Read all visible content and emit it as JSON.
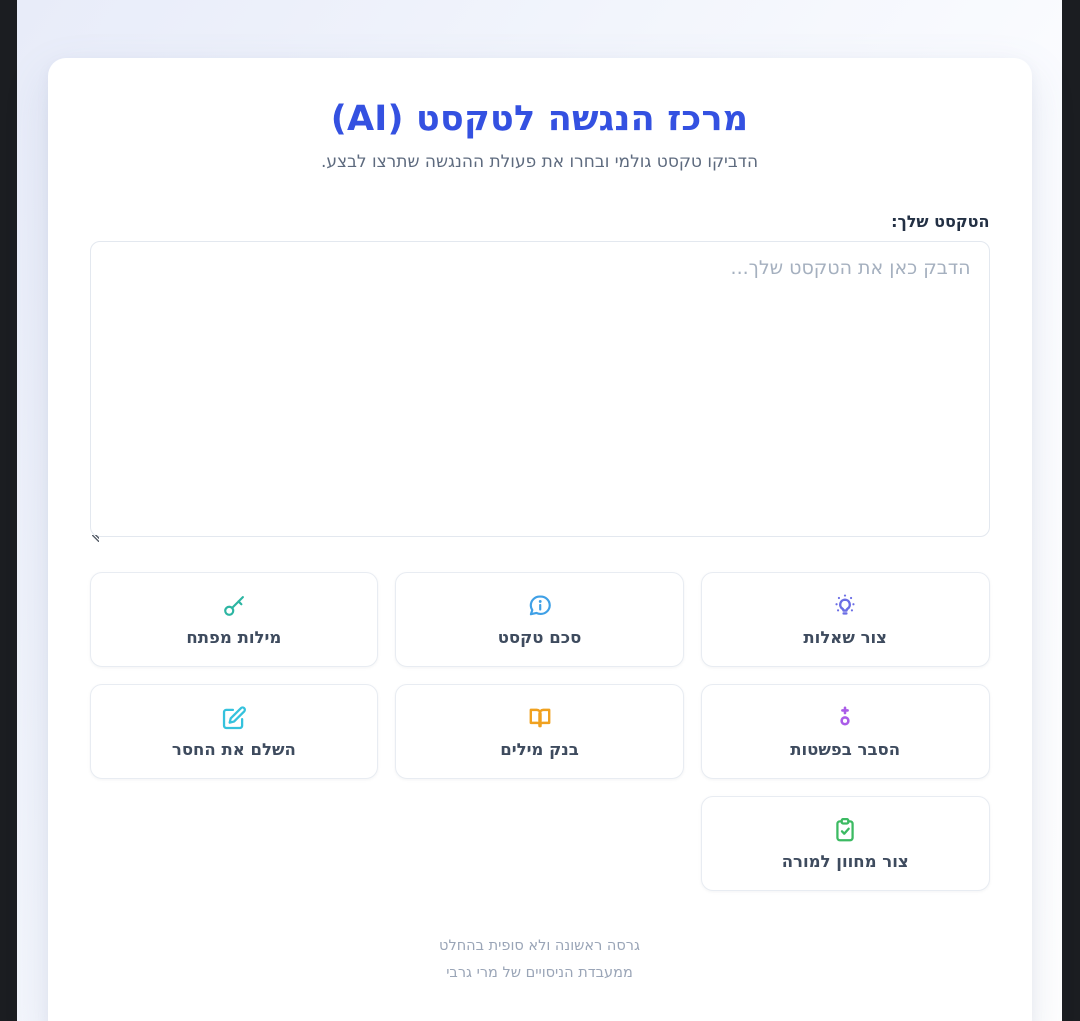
{
  "window": {
    "frame_color": "#1b1d21"
  },
  "header": {
    "title": "מרכז הנגשה לטקסט (AI)",
    "subtitle": "הדביקו טקסט גולמי ובחרו את פעולת ההנגשה שתרצו לבצע."
  },
  "editor": {
    "label": "הטקסט שלך:",
    "placeholder": "הדבק כאן את הטקסט שלך...",
    "value": ""
  },
  "actions": [
    {
      "id": "create-questions",
      "label": "צור שאלות",
      "icon": "lightbulb-icon",
      "color": "#6b6ee5"
    },
    {
      "id": "summarize-text",
      "label": "סכם טקסט",
      "icon": "info-bubble-icon",
      "color": "#3fa0e6"
    },
    {
      "id": "keywords",
      "label": "מילות מפתח",
      "icon": "key-icon",
      "color": "#2cb5a2"
    },
    {
      "id": "explain-simply",
      "label": "הסבר בפשטות",
      "icon": "sparkle-icon",
      "color": "#aa5ce8"
    },
    {
      "id": "word-bank",
      "label": "בנק מילים",
      "icon": "open-book-icon",
      "color": "#f0a11f"
    },
    {
      "id": "fill-in-blanks",
      "label": "השלם את החסר",
      "icon": "edit-icon",
      "color": "#35c2dd"
    },
    {
      "id": "teacher-rubric",
      "label": "צור מחוון למורה",
      "icon": "clipboard-check-icon",
      "color": "#3cba62"
    }
  ],
  "footer": {
    "line1": "גרסה ראשונה ולא סופית בהחלט",
    "line2": "ממעבדת הניסויים של מרי גרבי"
  },
  "colors": {
    "title": "#3451e1",
    "page_background_start": "#e8ecf9",
    "page_background_end": "#ffffff",
    "card_background": "#ffffff"
  }
}
